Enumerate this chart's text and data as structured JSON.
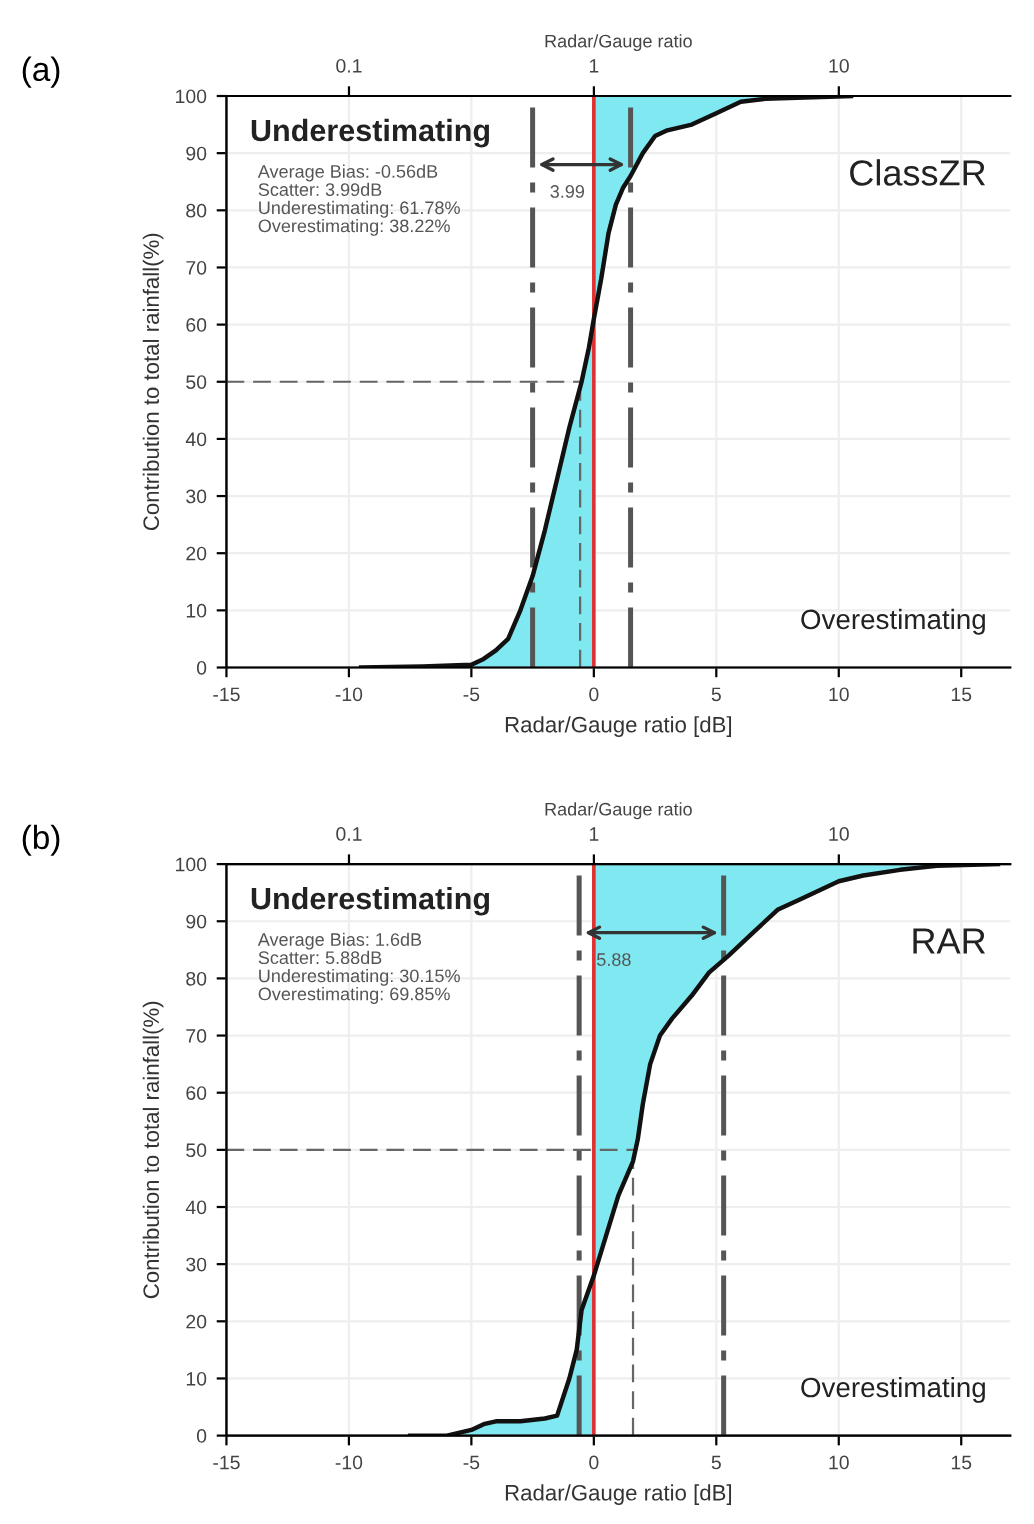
{
  "chart_data": [
    {
      "type": "line",
      "title": "(a)",
      "xlabel": "Radar/Gauge ratio [dB]",
      "ylabel": "Contribution to total rainfall(%)",
      "x2label": "Radar/Gauge ratio",
      "xlim": [
        -15,
        17
      ],
      "xticks": [
        -15,
        -10,
        -5,
        0,
        5,
        10,
        15
      ],
      "x2lim": [
        0.0316,
        50.1
      ],
      "x2ticks": [
        0.1,
        1,
        10
      ],
      "log": "x2",
      "ylim": [
        0,
        100
      ],
      "yticks": [
        0,
        10,
        20,
        30,
        40,
        50,
        60,
        70,
        80,
        90,
        100
      ],
      "grid": true,
      "series": [
        {
          "color": "#111111",
          "x": [
            -9.5,
            -7,
            -5,
            -4.5,
            -4,
            -3.5,
            -3,
            -2.5,
            -2,
            -1.5,
            -1,
            -0.5,
            -0.2,
            0,
            0.3,
            0.6,
            0.9,
            1.2,
            1.5,
            2,
            2.5,
            3,
            4,
            5,
            6,
            7,
            10.5
          ],
          "values": [
            0,
            0.2,
            0.5,
            1.5,
            3,
            5,
            10,
            16,
            24,
            33,
            42,
            50,
            56,
            61,
            68,
            76,
            81,
            84,
            86,
            90,
            93,
            94,
            95,
            97,
            99,
            99.5,
            100
          ]
        }
      ],
      "ref_lines": [
        {
          "axis": "x",
          "value": 0,
          "color": "#e03030",
          "line_style": "solid"
        },
        {
          "axis": "x",
          "value": -2.5,
          "color": "#555555",
          "line_style": "dashdot"
        },
        {
          "axis": "x",
          "value": 1.5,
          "color": "#555555",
          "line_style": "dashdot"
        },
        {
          "axis": "x",
          "value": -0.56,
          "color": "#666666",
          "line_style": "dashed"
        },
        {
          "axis": "y",
          "value": 50,
          "color": "#666666",
          "line_style": "dashed"
        }
      ],
      "annotations": [
        "3.99",
        "Underestimating",
        "Average Bias: -0.56dB\nScatter: 3.99dB\nUnderestimating: 61.78%\nOverestimating: 38.22%",
        "ClassZR",
        "Overestimating"
      ]
    },
    {
      "type": "line",
      "title": "(b)",
      "xlabel": "Radar/Gauge ratio [dB]",
      "ylabel": "Contribution to total rainfall(%)",
      "x2label": "Radar/Gauge ratio",
      "xlim": [
        -15,
        17
      ],
      "xticks": [
        -15,
        -10,
        -5,
        0,
        5,
        10,
        15
      ],
      "x2lim": [
        0.0316,
        50.1
      ],
      "x2ticks": [
        0.1,
        1,
        10
      ],
      "log": "x2",
      "ylim": [
        0,
        100
      ],
      "yticks": [
        0,
        10,
        20,
        30,
        40,
        50,
        60,
        70,
        80,
        90,
        100
      ],
      "grid": true,
      "series": [
        {
          "color": "#111111",
          "x": [
            -7.5,
            -6,
            -5,
            -4.5,
            -4,
            -3,
            -2,
            -1.5,
            -1,
            -0.7,
            -0.5,
            0,
            0.5,
            1,
            1.6,
            1.8,
            2,
            2.3,
            2.7,
            3.2,
            4,
            4.7,
            5.5,
            6.5,
            7.5,
            8.5,
            10,
            11,
            12.5,
            14,
            16.5
          ],
          "values": [
            0,
            0,
            1,
            2,
            2.5,
            2.5,
            3,
            3.5,
            10,
            15,
            22,
            28,
            35,
            42,
            48,
            52,
            58,
            65,
            70,
            73,
            77,
            81,
            84,
            88,
            92,
            94,
            97,
            98,
            99,
            99.7,
            100
          ]
        }
      ],
      "ref_lines": [
        {
          "axis": "x",
          "value": 0,
          "color": "#e03030",
          "line_style": "solid"
        },
        {
          "axis": "x",
          "value": -0.6,
          "color": "#555555",
          "line_style": "dashdot"
        },
        {
          "axis": "x",
          "value": 5.3,
          "color": "#555555",
          "line_style": "dashdot"
        },
        {
          "axis": "x",
          "value": 1.6,
          "color": "#666666",
          "line_style": "dashed"
        },
        {
          "axis": "y",
          "value": 50,
          "color": "#666666",
          "line_style": "dashed"
        }
      ],
      "annotations": [
        "5.88",
        "Underestimating",
        "Average Bias: 1.6dB\nScatter: 5.88dB\nUnderestimating: 30.15%\nOverestimating: 69.85%",
        "RAR",
        "Overestimating"
      ]
    }
  ]
}
